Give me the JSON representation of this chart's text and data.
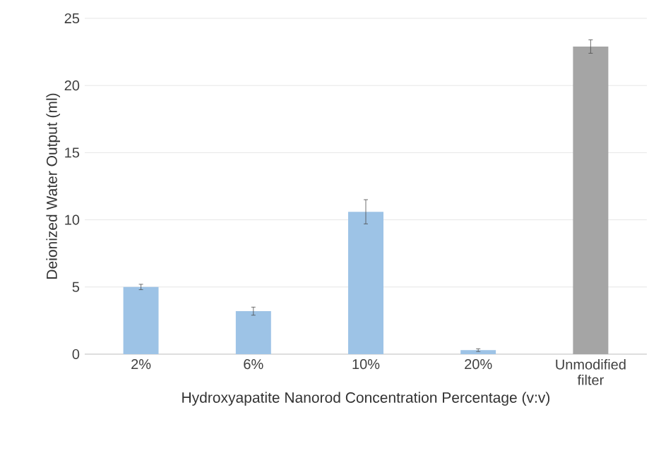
{
  "chart_data": {
    "type": "bar",
    "xlabel": "Hydroxyapatite Nanorod Concentration Percentage (v:v)",
    "ylabel": "Deionized Water Output (ml)",
    "categories": [
      "2%",
      "6%",
      "10%",
      "20%",
      "Unmodified filter"
    ],
    "values": [
      5.0,
      3.2,
      10.6,
      0.3,
      22.9
    ],
    "errors": [
      0.2,
      0.3,
      0.9,
      0.1,
      0.5
    ],
    "colors": [
      "#9dc3e6",
      "#9dc3e6",
      "#9dc3e6",
      "#9dc3e6",
      "#a5a5a5"
    ],
    "ylim": [
      0,
      25
    ],
    "yticks": [
      0,
      5,
      10,
      15,
      20,
      25
    ],
    "grid": "y"
  }
}
